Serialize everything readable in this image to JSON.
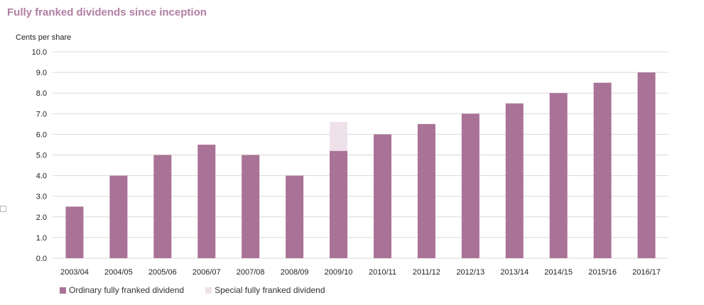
{
  "header": {
    "title": "Fully franked dividends since inception"
  },
  "colors": {
    "ordinary": "#a87396",
    "special": "#efe1ea",
    "grid": "#d9d9d9",
    "title": "#b07ea3"
  },
  "chart_data": {
    "type": "bar",
    "stacked": true,
    "title": "Fully franked dividends since inception",
    "ylabel": "Cents per share",
    "xlabel": "",
    "ylim": [
      0,
      10
    ],
    "yticks": [
      "0.0",
      "1.0",
      "2.0",
      "3.0",
      "4.0",
      "5.0",
      "6.0",
      "7.0",
      "8.0",
      "9.0",
      "10.0"
    ],
    "grid": true,
    "legend_position": "bottom-left",
    "categories": [
      "2003/04",
      "2004/05",
      "2005/06",
      "2006/07",
      "2007/08",
      "2008/09",
      "2009/10",
      "2010/11",
      "2011/12",
      "2012/13",
      "2013/14",
      "2014/15",
      "2015/16",
      "2016/17"
    ],
    "series": [
      {
        "name": "Ordinary fully franked dividend",
        "values": [
          2.5,
          4.0,
          5.0,
          5.5,
          5.0,
          4.0,
          5.2,
          6.0,
          6.5,
          7.0,
          7.5,
          8.0,
          8.5,
          9.0
        ]
      },
      {
        "name": "Special fully franked dividend",
        "values": [
          0,
          0,
          0,
          0,
          0,
          0,
          1.4,
          0,
          0,
          0,
          0,
          0,
          0,
          0
        ]
      }
    ]
  }
}
